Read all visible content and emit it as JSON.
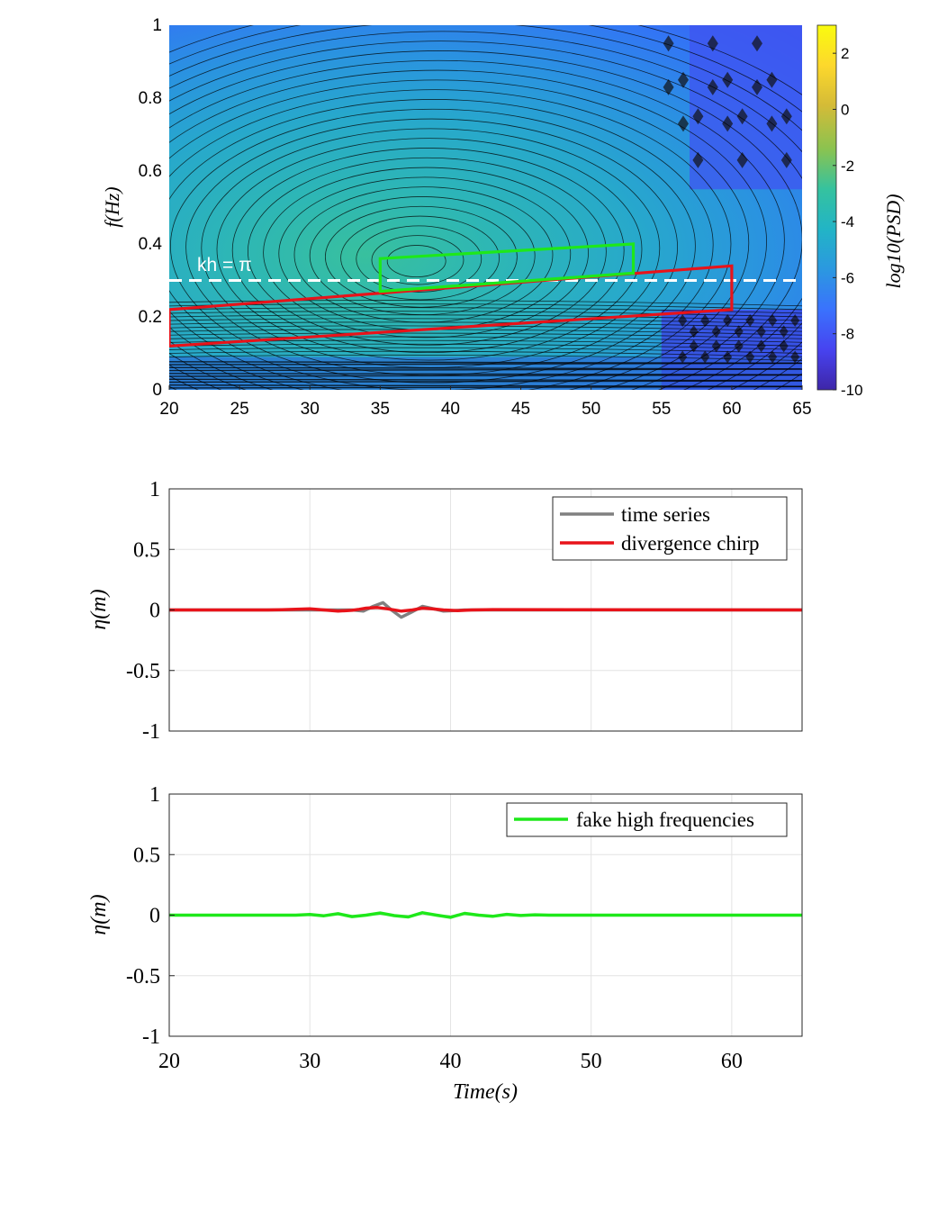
{
  "colors": {
    "red": "#e8131a",
    "green": "#1ee81a",
    "gray": "#808080",
    "white_dash": "#ffffff",
    "grid": "#e3e3e3",
    "colormap": [
      "#3e26a8",
      "#4743f0",
      "#3a72fd",
      "#2b98e0",
      "#22b4c6",
      "#35c29f",
      "#8ac350",
      "#d4bb37",
      "#fdd82c",
      "#f9fb0e"
    ]
  },
  "chart_data": [
    {
      "type": "heatmap",
      "xlim": [
        20,
        65
      ],
      "ylim": [
        0,
        1
      ],
      "xticks": [
        "20",
        "25",
        "30",
        "35",
        "40",
        "45",
        "50",
        "55",
        "60",
        "65"
      ],
      "yticks": [
        "0",
        "0.2",
        "0.4",
        "0.6",
        "0.8",
        "1"
      ],
      "ylabel": "f(Hz)",
      "colorbar": {
        "label": "log10(PSD)",
        "range": [
          -10,
          3
        ],
        "ticks": [
          "-10",
          "-8",
          "-6",
          "-4",
          "-2",
          "0",
          "2"
        ],
        "colormap": "parula"
      },
      "peak": {
        "x": 37.5,
        "y": 0.35
      },
      "annotations": {
        "kh_label": "kh = π",
        "kh_line": {
          "y": 0.3,
          "x": [
            20,
            65
          ],
          "style": "dashed",
          "color": "#ffffff"
        },
        "red_region": [
          [
            20,
            0.12
          ],
          [
            20,
            0.22
          ],
          [
            60,
            0.34
          ],
          [
            60,
            0.22
          ]
        ],
        "green_region": [
          [
            35,
            0.27
          ],
          [
            35,
            0.36
          ],
          [
            53,
            0.4
          ],
          [
            53,
            0.32
          ]
        ]
      }
    },
    {
      "type": "line",
      "xlim": [
        20,
        65
      ],
      "ylim": [
        -1,
        1
      ],
      "yticks": [
        "1",
        "0.5",
        "0",
        "-0.5",
        "-1"
      ],
      "ylabel": "η(m)",
      "grid": true,
      "legend_position": "top-right",
      "series": [
        {
          "name": "time series",
          "color": "#808080",
          "x": [
            20,
            30,
            33,
            33.8,
            34.5,
            35.2,
            35.8,
            36.5,
            37.2,
            38,
            38.8,
            39.5,
            40.2,
            41,
            65
          ],
          "y": [
            0,
            0,
            0,
            -0.01,
            0.03,
            0.06,
            0.0,
            -0.06,
            -0.02,
            0.03,
            0.01,
            -0.01,
            -0.005,
            0,
            0
          ]
        },
        {
          "name": "divergence chirp",
          "color": "#e8131a",
          "x": [
            20,
            27,
            28,
            29,
            30,
            31,
            32,
            33,
            33.5,
            34,
            34.8,
            35.5,
            36.5,
            37.3,
            38,
            38.7,
            39.5,
            40.5,
            41.5,
            43,
            65
          ],
          "y": [
            0,
            0,
            0.002,
            0.006,
            0.01,
            0.0,
            -0.01,
            -0.003,
            0.005,
            0.015,
            0.02,
            0.01,
            -0.01,
            0.0,
            0.015,
            0.01,
            0.0,
            -0.006,
            0.0,
            0.003,
            0
          ]
        }
      ]
    },
    {
      "type": "line",
      "xlim": [
        20,
        65
      ],
      "ylim": [
        -1,
        1
      ],
      "xticks": [
        "20",
        "30",
        "40",
        "50",
        "60"
      ],
      "yticks": [
        "1",
        "0.5",
        "0",
        "-0.5",
        "-1"
      ],
      "ylabel": "η(m)",
      "xlabel": "Time(s)",
      "grid": true,
      "legend_position": "top-right",
      "series": [
        {
          "name": "fake high frequencies",
          "color": "#1ee81a",
          "x": [
            20,
            29,
            30,
            31,
            32,
            33,
            34,
            35,
            36,
            37,
            38,
            39,
            40,
            41,
            42,
            43,
            44,
            45,
            46,
            47,
            65
          ],
          "y": [
            0,
            0,
            0.005,
            -0.005,
            0.012,
            -0.012,
            0.0,
            0.018,
            -0.004,
            -0.015,
            0.02,
            0.0,
            -0.018,
            0.015,
            0.0,
            -0.01,
            0.007,
            -0.003,
            0.003,
            0,
            0
          ]
        }
      ]
    }
  ]
}
